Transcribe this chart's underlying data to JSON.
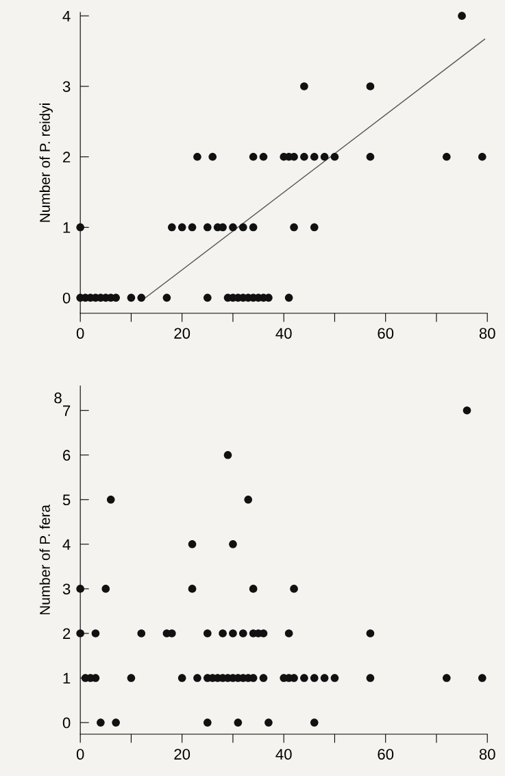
{
  "chart_data": [
    {
      "type": "scatter",
      "ylabel": "Number of P. reidyi",
      "xlim": [
        0,
        80
      ],
      "ylim": [
        -0.22,
        4.05
      ],
      "xticks": [
        0,
        {
          "value": 10,
          "label": null
        },
        20,
        {
          "value": 30,
          "label": null
        },
        40,
        {
          "value": 50,
          "label": null
        },
        60,
        {
          "value": 70,
          "label": null
        },
        80
      ],
      "yticks": [
        0,
        1,
        2,
        3,
        4
      ],
      "grid": false,
      "marker": "circle",
      "series": [
        {
          "color": "#111111",
          "x": [
            0,
            1,
            2,
            3,
            4,
            5,
            6,
            7,
            10,
            12,
            17,
            25,
            29,
            30,
            31,
            32,
            33,
            34,
            35,
            36,
            37,
            41,
            0,
            18,
            20,
            22,
            25,
            27,
            28,
            30,
            32,
            34,
            42,
            46,
            23,
            26,
            34,
            36,
            40,
            41,
            42,
            44,
            46,
            48,
            50,
            57,
            72,
            79,
            44,
            57,
            75
          ],
          "values": [
            0,
            0,
            0,
            0,
            0,
            0,
            0,
            0,
            0,
            0,
            0,
            0,
            0,
            0,
            0,
            0,
            0,
            0,
            0,
            0,
            0,
            0,
            1,
            1,
            1,
            1,
            1,
            1,
            1,
            1,
            1,
            1,
            1,
            1,
            2,
            2,
            2,
            2,
            2,
            2,
            2,
            2,
            2,
            2,
            2,
            2,
            2,
            2,
            3,
            3,
            4
          ]
        },
        {
          "type": "line",
          "color": "#555555",
          "x": [
            12.8,
            79.5
          ],
          "values": [
            0,
            3.67
          ],
          "marker": "none",
          "line_style": "solid"
        }
      ]
    },
    {
      "type": "scatter",
      "ylabel": "Number of P. fera",
      "xlim": [
        0,
        80
      ],
      "ylim": [
        -0.26,
        7.55
      ],
      "xticks": [
        0,
        {
          "value": 10,
          "label": null
        },
        20,
        {
          "value": 30,
          "label": null
        },
        40,
        {
          "value": 50,
          "label": null
        },
        60,
        {
          "value": 70,
          "label": null
        },
        80
      ],
      "yticks": [
        0,
        1,
        2,
        3,
        4,
        5,
        6,
        7
      ],
      "annotations": [
        "8"
      ],
      "grid": false,
      "marker": "circle",
      "series": [
        {
          "color": "#111111",
          "x": [
            4,
            7,
            25,
            31,
            37,
            46,
            1,
            2,
            3,
            10,
            20,
            23,
            25,
            26,
            27,
            28,
            29,
            30,
            31,
            32,
            33,
            34,
            36,
            40,
            41,
            42,
            44,
            46,
            48,
            50,
            57,
            72,
            79,
            0,
            3,
            12,
            17,
            18,
            25,
            28,
            30,
            32,
            34,
            35,
            36,
            41,
            57,
            0,
            5,
            22,
            34,
            42,
            22,
            30,
            6,
            33,
            29,
            76
          ],
          "values": [
            0,
            0,
            0,
            0,
            0,
            0,
            1,
            1,
            1,
            1,
            1,
            1,
            1,
            1,
            1,
            1,
            1,
            1,
            1,
            1,
            1,
            1,
            1,
            1,
            1,
            1,
            1,
            1,
            1,
            1,
            1,
            1,
            1,
            2,
            2,
            2,
            2,
            2,
            2,
            2,
            2,
            2,
            2,
            2,
            2,
            2,
            2,
            3,
            3,
            3,
            3,
            3,
            4,
            4,
            5,
            5,
            6,
            7
          ]
        }
      ]
    }
  ]
}
